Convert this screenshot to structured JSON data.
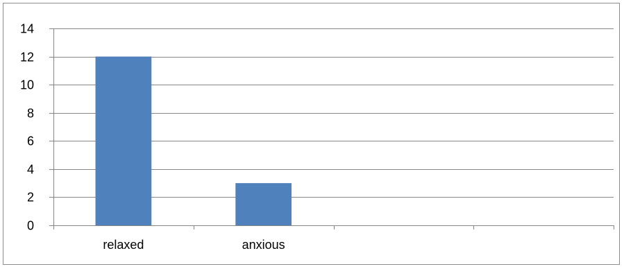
{
  "chart_data": {
    "type": "bar",
    "categories": [
      "relaxed",
      "anxious"
    ],
    "values": [
      12,
      3
    ],
    "category_slots": 4,
    "title": "",
    "xlabel": "",
    "ylabel": "",
    "ylim": [
      0,
      14
    ],
    "y_ticks": [
      0,
      2,
      4,
      6,
      8,
      10,
      12,
      14
    ],
    "grid": true,
    "legend": "none",
    "colors": {
      "bar": "#4f81bd",
      "gridline": "#868686",
      "frame_border": "#8c8c8c"
    }
  }
}
